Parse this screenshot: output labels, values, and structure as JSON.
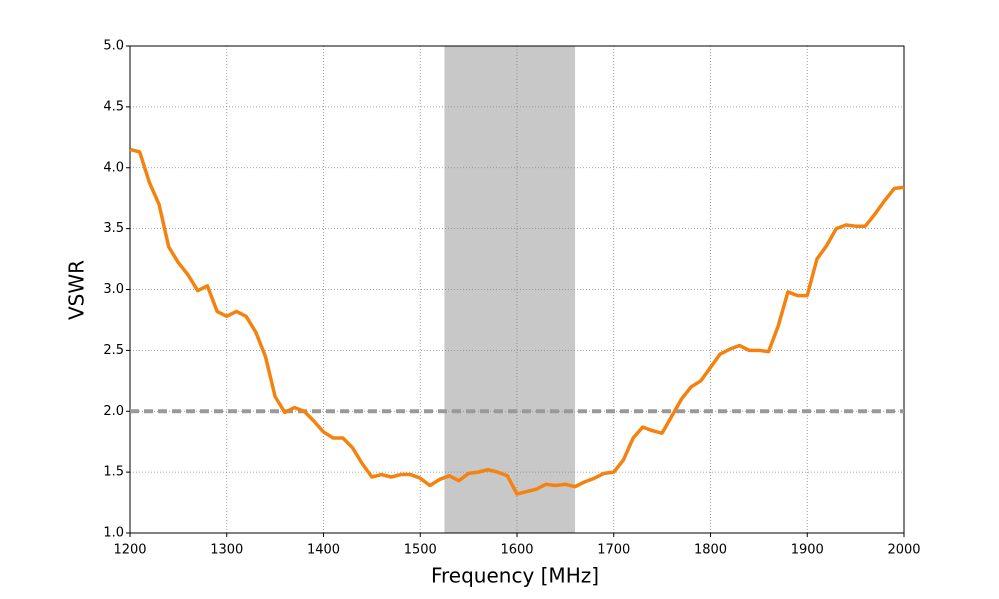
{
  "chart_data": {
    "type": "line",
    "x_label": "Frequency [MHz]",
    "y_label": "VSWR",
    "x": [
      1200,
      1210,
      1220,
      1230,
      1240,
      1250,
      1260,
      1270,
      1280,
      1290,
      1300,
      1310,
      1320,
      1330,
      1340,
      1350,
      1360,
      1370,
      1380,
      1390,
      1400,
      1410,
      1420,
      1430,
      1440,
      1450,
      1460,
      1470,
      1480,
      1490,
      1500,
      1510,
      1520,
      1530,
      1540,
      1550,
      1560,
      1570,
      1580,
      1590,
      1600,
      1610,
      1620,
      1630,
      1640,
      1650,
      1660,
      1670,
      1680,
      1690,
      1700,
      1710,
      1720,
      1730,
      1740,
      1750,
      1760,
      1770,
      1780,
      1790,
      1800,
      1810,
      1820,
      1830,
      1840,
      1850,
      1860,
      1870,
      1880,
      1890,
      1900,
      1910,
      1920,
      1930,
      1940,
      1950,
      1960,
      1970,
      1980,
      1990,
      2000
    ],
    "values": [
      4.15,
      4.13,
      3.88,
      3.7,
      3.35,
      3.22,
      3.12,
      2.99,
      3.03,
      2.82,
      2.78,
      2.82,
      2.78,
      2.65,
      2.45,
      2.12,
      1.99,
      2.03,
      2.0,
      1.92,
      1.83,
      1.78,
      1.78,
      1.7,
      1.57,
      1.46,
      1.48,
      1.46,
      1.48,
      1.48,
      1.45,
      1.39,
      1.44,
      1.47,
      1.43,
      1.49,
      1.5,
      1.52,
      1.5,
      1.47,
      1.32,
      1.34,
      1.36,
      1.4,
      1.39,
      1.4,
      1.38,
      1.42,
      1.45,
      1.49,
      1.5,
      1.6,
      1.78,
      1.87,
      1.84,
      1.82,
      1.96,
      2.1,
      2.2,
      2.25,
      2.36,
      2.47,
      2.51,
      2.54,
      2.5,
      2.5,
      2.49,
      2.7,
      2.98,
      2.95,
      2.95,
      3.25,
      3.36,
      3.5,
      3.53,
      3.52,
      3.52,
      3.62,
      3.73,
      3.83,
      3.84
    ],
    "color": "#f5820f",
    "shaded_region": [
      1525,
      1660
    ],
    "shaded_color": "#c8c8c8",
    "reference_line": 2.0,
    "reference_color": "#999999",
    "xlim": [
      1200,
      2000
    ],
    "xticks": [
      1200,
      1300,
      1400,
      1500,
      1600,
      1700,
      1800,
      1900,
      2000
    ],
    "ylim": [
      1.0,
      5.0
    ],
    "yticks": [
      {
        "value": 1.0,
        "label": "1.0"
      },
      {
        "value": 1.5,
        "label": "1.5"
      },
      {
        "value": 2.0,
        "label": "2.0"
      },
      {
        "value": 2.5,
        "label": "2.5"
      },
      {
        "value": 3.0,
        "label": "3.0"
      },
      {
        "value": 3.5,
        "label": "3.5"
      },
      {
        "value": 4.0,
        "label": "4.0"
      },
      {
        "value": 4.5,
        "label": "4.5"
      },
      {
        "value": 5.0,
        "label": "5.0"
      }
    ],
    "grid": true
  }
}
